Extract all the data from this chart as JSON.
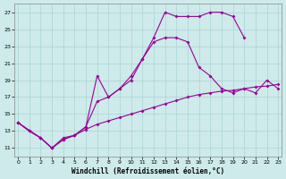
{
  "bg_color": "#ceeaea",
  "grid_color": "#aad4d4",
  "line_color": "#990099",
  "xlabel": "Windchill (Refroidissement éolien,°C)",
  "xlim": [
    -0.3,
    23.3
  ],
  "ylim": [
    10.0,
    28.0
  ],
  "xticks": [
    0,
    1,
    2,
    3,
    4,
    5,
    6,
    7,
    8,
    9,
    10,
    11,
    12,
    13,
    14,
    15,
    16,
    17,
    18,
    19,
    20,
    21,
    22,
    23
  ],
  "yticks": [
    11,
    13,
    15,
    17,
    19,
    21,
    23,
    25,
    27
  ],
  "line1_x": [
    0,
    1,
    2,
    3,
    4,
    5,
    6,
    7,
    8,
    9,
    10,
    11,
    12,
    13,
    14,
    15,
    16,
    17,
    18,
    19,
    20
  ],
  "line1_y": [
    14,
    13,
    12.2,
    11,
    12,
    12.5,
    13.5,
    19.5,
    17,
    18,
    19.5,
    21.5,
    24,
    27,
    26.5,
    26.5,
    26.5,
    27,
    27,
    26.5,
    24
  ],
  "line2_x": [
    0,
    1,
    2,
    3,
    4,
    5,
    6,
    7,
    8,
    9,
    10,
    11,
    12,
    13,
    14,
    15,
    16,
    17,
    18,
    19,
    20,
    21,
    22,
    23
  ],
  "line2_y": [
    14,
    13,
    12.2,
    11,
    12,
    12.5,
    13.5,
    16.5,
    17,
    18,
    19,
    21.5,
    23.5,
    24,
    24,
    23.5,
    20.5,
    19.5,
    18,
    17.5,
    18,
    17.5,
    19,
    18
  ],
  "line3_x": [
    0,
    2,
    3,
    4,
    5,
    6,
    7,
    8,
    9,
    10,
    11,
    12,
    13,
    14,
    15,
    16,
    17,
    18,
    19,
    20,
    21,
    22,
    23
  ],
  "line3_y": [
    14,
    12.2,
    11,
    12.2,
    12.5,
    13.2,
    13.8,
    14.2,
    14.6,
    15.0,
    15.4,
    15.8,
    16.2,
    16.6,
    17.0,
    17.3,
    17.5,
    17.7,
    17.8,
    18.0,
    18.2,
    18.3,
    18.5
  ]
}
